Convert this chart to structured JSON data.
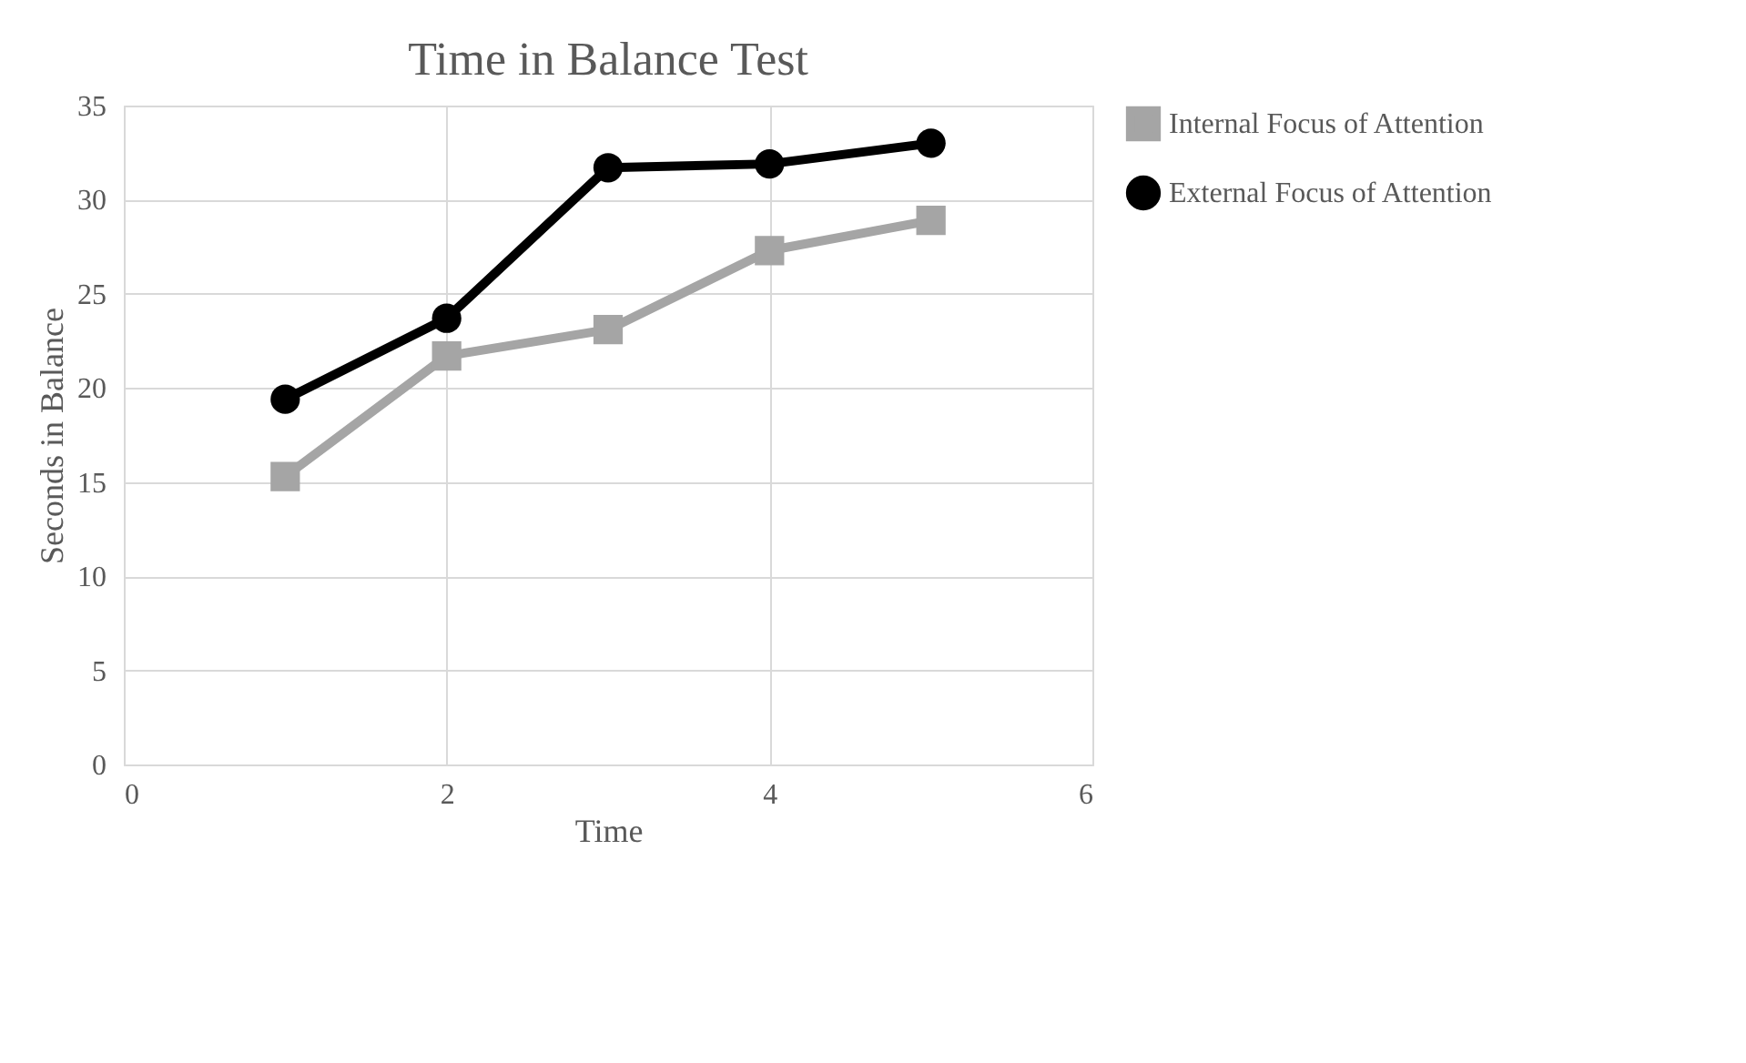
{
  "chart_data": {
    "type": "line",
    "title": "Time in Balance Test",
    "xlabel": "Time",
    "ylabel": "Seconds in Balance",
    "x": [
      1,
      2,
      3,
      4,
      5
    ],
    "series": [
      {
        "name": "Internal Focus of Attention",
        "color": "#a5a5a5",
        "marker": "square",
        "values": [
          15.3,
          21.7,
          23.1,
          27.3,
          28.9
        ]
      },
      {
        "name": "External Focus of Attention",
        "color": "#000000",
        "marker": "circle",
        "values": [
          19.4,
          23.7,
          31.7,
          31.9,
          33.0
        ]
      }
    ],
    "xlim": [
      0,
      6
    ],
    "xticks": [
      0,
      2,
      4,
      6
    ],
    "ylim": [
      0,
      35
    ],
    "yticks": [
      0,
      5,
      10,
      15,
      20,
      25,
      30,
      35
    ],
    "grid": true,
    "legend": "right",
    "line_style": "solid"
  }
}
